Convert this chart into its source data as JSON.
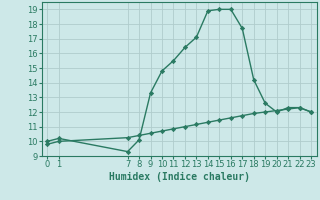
{
  "line1_x": [
    0,
    1,
    7,
    8,
    9,
    10,
    11,
    12,
    13,
    14,
    15,
    16,
    17,
    18,
    19,
    20,
    21,
    22,
    23
  ],
  "line1_y": [
    10.0,
    10.2,
    9.3,
    10.1,
    13.3,
    14.8,
    15.5,
    16.4,
    17.1,
    18.9,
    19.0,
    19.0,
    17.7,
    14.2,
    12.6,
    12.0,
    12.3,
    12.3,
    12.0
  ],
  "line2_x": [
    0,
    1,
    7,
    8,
    9,
    10,
    11,
    12,
    13,
    14,
    15,
    16,
    17,
    18,
    19,
    20,
    21,
    22,
    23
  ],
  "line2_y": [
    9.8,
    10.0,
    10.25,
    10.4,
    10.55,
    10.7,
    10.85,
    11.0,
    11.15,
    11.3,
    11.45,
    11.6,
    11.75,
    11.9,
    12.0,
    12.1,
    12.2,
    12.3,
    12.0
  ],
  "line_color": "#2a7a62",
  "bg_color": "#cde8e8",
  "grid_color": "#b0cccc",
  "xlabel": "Humidex (Indice chaleur)",
  "ylim": [
    9,
    19.5
  ],
  "xlim": [
    -0.5,
    23.5
  ],
  "yticks": [
    9,
    10,
    11,
    12,
    13,
    14,
    15,
    16,
    17,
    18,
    19
  ],
  "xtick_positions": [
    0,
    1,
    7,
    8,
    9,
    10,
    11,
    12,
    13,
    14,
    15,
    16,
    17,
    18,
    19,
    20,
    21,
    22,
    23
  ],
  "xtick_labels": [
    "0",
    "1",
    "7",
    "8",
    "9",
    "10",
    "11",
    "12",
    "13",
    "14",
    "15",
    "16",
    "17",
    "18",
    "19",
    "20",
    "21",
    "22",
    "23"
  ],
  "marker": "D",
  "marker_size": 2.2,
  "line_width": 1.0,
  "tick_fontsize": 6.0,
  "xlabel_fontsize": 7.0
}
